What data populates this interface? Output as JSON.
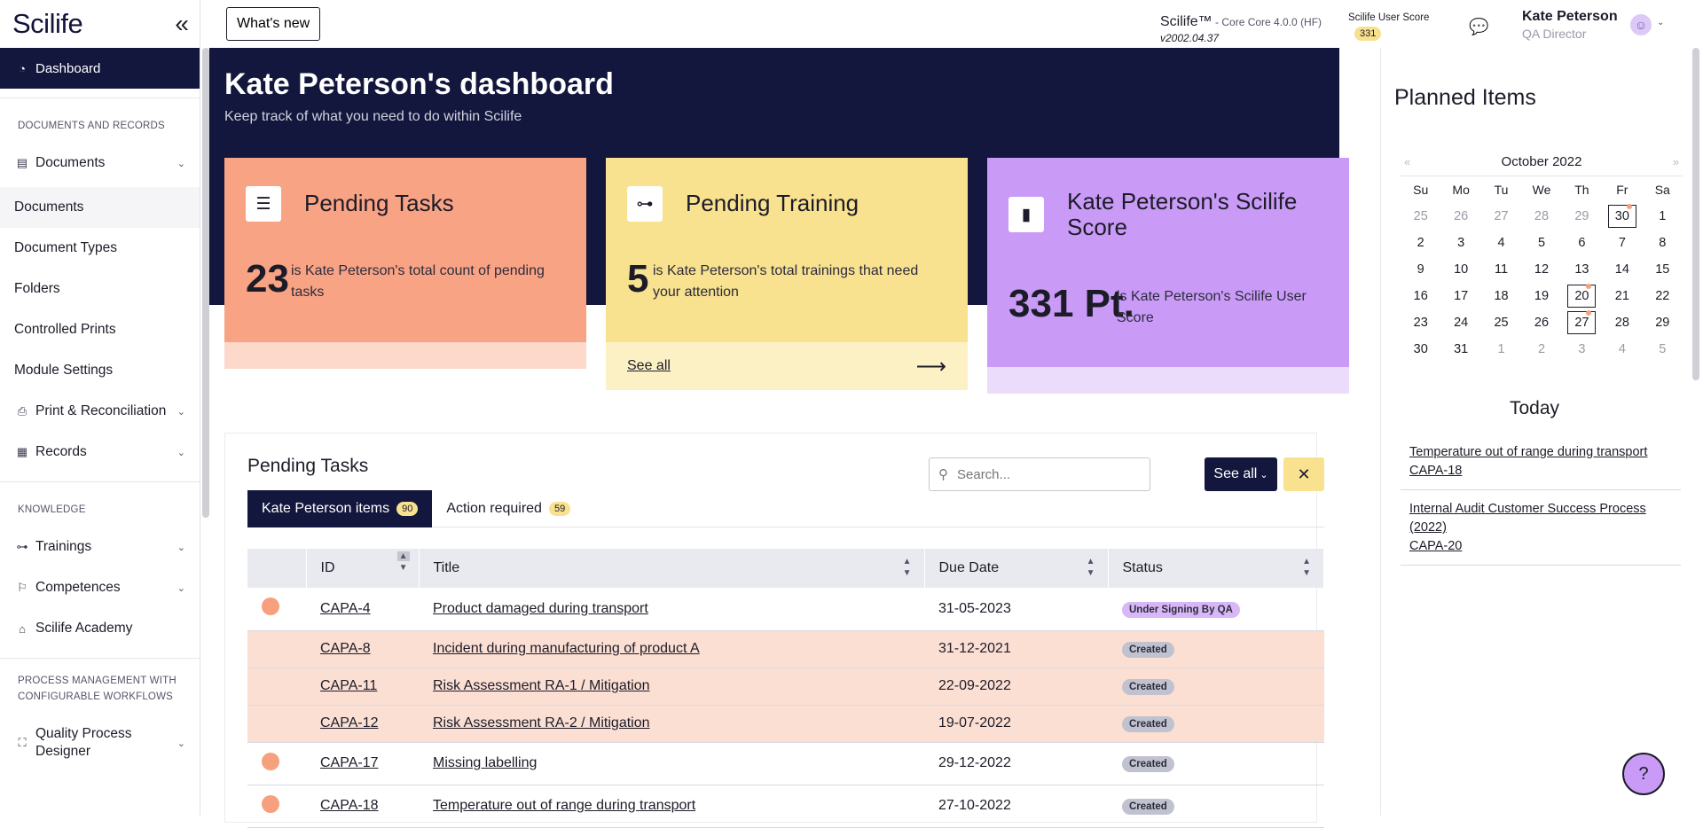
{
  "sidebar": {
    "logo": "Scilife",
    "collapse_icon": "double-chevron-left",
    "active_item": "Dashboard",
    "section_documents": "DOCUMENTS AND RECORDS",
    "documents_group": "Documents",
    "doc_items": [
      "Documents",
      "Document Types",
      "Folders",
      "Controlled Prints",
      "Module Settings"
    ],
    "print_reconciliation": "Print & Reconciliation",
    "records": "Records",
    "section_knowledge": "KNOWLEDGE",
    "trainings": "Trainings",
    "competences": "Competences",
    "academy": "Scilife Academy",
    "section_process": "PROCESS MANAGEMENT WITH CONFIGURABLE WORKFLOWS",
    "quality_process": "Quality Process Designer"
  },
  "topbar": {
    "whats_new": "What's new",
    "product": "Scilife™",
    "product_sub": " - Core Core 4.0.0 (HF)",
    "version": "v2002.04.37",
    "score_label": "Scilife User Score",
    "score_value": "331",
    "user_name": "Kate Peterson",
    "user_role": "QA Director"
  },
  "hero": {
    "title": "Kate Peterson's dashboard",
    "subtitle": "Keep track of what you need to do within Scilife"
  },
  "cards": {
    "tasks": {
      "title": "Pending Tasks",
      "number": "23",
      "desc": "is Kate Peterson's total count of pending tasks"
    },
    "training": {
      "title": "Pending Training",
      "number": "5",
      "desc": "is Kate Peterson's total trainings that need your attention",
      "link": "See all"
    },
    "score": {
      "title": "Kate Peterson's Scilife Score",
      "number": "331 Pt.",
      "desc": "is Kate Peterson's Scilife User Score"
    }
  },
  "tasks_panel": {
    "title": "Pending Tasks",
    "search_placeholder": "Search...",
    "see_all": "See all",
    "tabs": [
      {
        "label": "Kate Peterson items",
        "count": "90"
      },
      {
        "label": "Action required",
        "count": "59"
      }
    ],
    "columns": [
      "ID",
      "Title",
      "Due Date",
      "Status"
    ],
    "rows": [
      {
        "id": "CAPA-4",
        "title": "Product damaged during transport",
        "due": "31-05-2023",
        "status": "Under Signing By QA"
      },
      {
        "id": "CAPA-8",
        "title": "Incident during manufacturing of product A",
        "due": "31-12-2021",
        "status": "Created"
      },
      {
        "id": "CAPA-11",
        "title": "Risk Assessment RA-1 / Mitigation",
        "due": "22-09-2022",
        "status": "Created"
      },
      {
        "id": "CAPA-12",
        "title": "Risk Assessment RA-2 / Mitigation",
        "due": "19-07-2022",
        "status": "Created"
      },
      {
        "id": "CAPA-17",
        "title": "Missing labelling",
        "due": "29-12-2022",
        "status": "Created"
      },
      {
        "id": "CAPA-18",
        "title": "Temperature out of range during transport",
        "due": "27-10-2022",
        "status": "Created"
      }
    ]
  },
  "planned": {
    "title": "Planned Items",
    "month": "October 2022",
    "weekdays": [
      "Su",
      "Mo",
      "Tu",
      "We",
      "Th",
      "Fr",
      "Sa"
    ],
    "today_label": "Today",
    "items": [
      {
        "title": "Temperature out of range during transport",
        "id": "CAPA-18"
      },
      {
        "title": "Internal Audit Customer Success Process (2022)",
        "id": "CAPA-20"
      }
    ]
  },
  "colors": {
    "navy": "#13173d",
    "tasks_card": "#f9a385",
    "training_card": "#f8e18f",
    "score_card": "#c99bf7"
  }
}
